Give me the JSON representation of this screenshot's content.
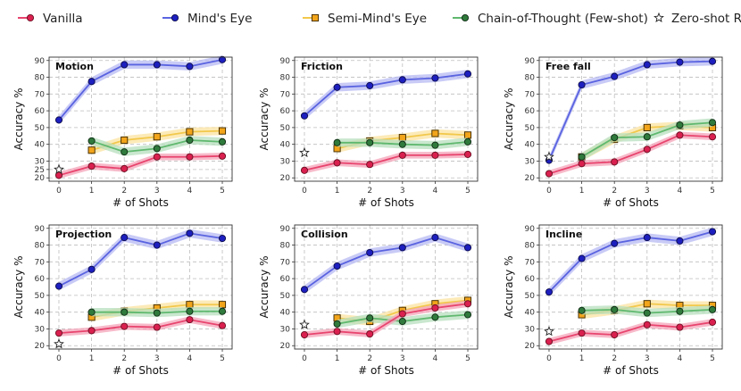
{
  "legend": {
    "entries": [
      {
        "key": "vanilla",
        "label": "Vanilla"
      },
      {
        "key": "minds_eye",
        "label": "Mind's Eye"
      },
      {
        "key": "semi",
        "label": "Semi-Mind's Eye"
      },
      {
        "key": "cot",
        "label": "Chain-of-Thought (Few-shot)"
      },
      {
        "key": "zero",
        "label": "Zero-shot Reasoner (Zero-shot)"
      }
    ]
  },
  "styles": {
    "vanilla": {
      "line": "#e8446e",
      "band": "#f4a3b8",
      "marker": "circle",
      "fill": "#d9204f",
      "stroke": "#6b0f22"
    },
    "minds_eye": {
      "line": "#5a63e0",
      "band": "#b7baf3",
      "marker": "circle",
      "fill": "#1d1fbf",
      "stroke": "#0c0c4a"
    },
    "semi": {
      "line": "#f2c84b",
      "band": "#fbe3a0",
      "marker": "square",
      "fill": "#f2a51b",
      "stroke": "#3a2600"
    },
    "cot": {
      "line": "#5fb86e",
      "band": "#b7dfbe",
      "marker": "circle",
      "fill": "#2f7a3c",
      "stroke": "#0f2a14"
    },
    "zero": {
      "marker": "star",
      "fill": "#ffffff",
      "stroke": "#222222"
    }
  },
  "chart_data": [
    {
      "type": "line",
      "title": "Motion",
      "xlabel": "# of Shots",
      "ylabel": "Accuracy %",
      "x": [
        0,
        1,
        2,
        3,
        4,
        5
      ],
      "xticks": [
        0,
        1,
        2,
        3,
        4,
        5
      ],
      "ylim": [
        18,
        92
      ],
      "yticks": [
        20,
        25,
        30,
        40,
        50,
        60,
        70,
        80,
        90
      ],
      "grid": true,
      "series": [
        {
          "key": "minds_eye",
          "x": [
            0,
            1,
            2,
            3,
            4,
            5
          ],
          "y": [
            54.5,
            77.5,
            87.5,
            87.5,
            86.5,
            90.5
          ],
          "band": 2.5
        },
        {
          "key": "semi",
          "x": [
            1,
            2,
            3,
            4,
            5
          ],
          "y": [
            36.5,
            42.5,
            44.5,
            47.5,
            48.0
          ],
          "band": 2.5
        },
        {
          "key": "cot",
          "x": [
            1,
            2,
            3,
            4,
            5
          ],
          "y": [
            42.0,
            35.5,
            37.5,
            42.5,
            41.5
          ],
          "band": 2.5
        },
        {
          "key": "vanilla",
          "x": [
            0,
            1,
            2,
            3,
            4,
            5
          ],
          "y": [
            21.5,
            27.0,
            25.5,
            32.5,
            32.5,
            33.0
          ],
          "band": 2.0
        },
        {
          "key": "zero",
          "x": [
            0
          ],
          "y": [
            25.0
          ]
        }
      ]
    },
    {
      "type": "line",
      "title": "Friction",
      "xlabel": "# of Shots",
      "ylabel": "Accuracy %",
      "x": [
        0,
        1,
        2,
        3,
        4,
        5
      ],
      "xticks": [
        0,
        1,
        2,
        3,
        4,
        5
      ],
      "ylim": [
        18,
        92
      ],
      "yticks": [
        20,
        30,
        40,
        50,
        60,
        70,
        80,
        90
      ],
      "grid": true,
      "series": [
        {
          "key": "minds_eye",
          "x": [
            0,
            1,
            2,
            3,
            4,
            5
          ],
          "y": [
            57.0,
            74.0,
            75.0,
            78.5,
            79.5,
            82.0
          ],
          "band": 2.5
        },
        {
          "key": "semi",
          "x": [
            1,
            2,
            3,
            4,
            5
          ],
          "y": [
            37.5,
            42.0,
            44.0,
            46.5,
            45.5
          ],
          "band": 2.5
        },
        {
          "key": "cot",
          "x": [
            1,
            2,
            3,
            4,
            5
          ],
          "y": [
            41.0,
            41.0,
            40.0,
            39.5,
            41.5
          ],
          "band": 2.5
        },
        {
          "key": "vanilla",
          "x": [
            0,
            1,
            2,
            3,
            4,
            5
          ],
          "y": [
            24.5,
            29.0,
            28.0,
            33.5,
            33.5,
            34.0
          ],
          "band": 2.0
        },
        {
          "key": "zero",
          "x": [
            0
          ],
          "y": [
            35.0
          ]
        }
      ]
    },
    {
      "type": "line",
      "title": "Free fall",
      "xlabel": "# of Shots",
      "ylabel": "Accuracy %",
      "x": [
        0,
        1,
        2,
        3,
        4,
        5
      ],
      "xticks": [
        0,
        1,
        2,
        3,
        4,
        5
      ],
      "ylim": [
        18,
        92
      ],
      "yticks": [
        20,
        30,
        40,
        50,
        60,
        70,
        80,
        90
      ],
      "grid": true,
      "series": [
        {
          "key": "minds_eye",
          "x": [
            0,
            1,
            2,
            3,
            4,
            5
          ],
          "y": [
            30.5,
            75.5,
            80.5,
            87.5,
            89.0,
            89.5
          ],
          "band": 2.5
        },
        {
          "key": "semi",
          "x": [
            1,
            2,
            3,
            4,
            5
          ],
          "y": [
            32.5,
            43.0,
            50.0,
            51.0,
            50.0
          ],
          "band": 2.5
        },
        {
          "key": "cot",
          "x": [
            1,
            2,
            3,
            4,
            5
          ],
          "y": [
            32.5,
            44.0,
            44.5,
            51.5,
            53.0
          ],
          "band": 2.5
        },
        {
          "key": "vanilla",
          "x": [
            0,
            1,
            2,
            3,
            4,
            5
          ],
          "y": [
            22.5,
            28.5,
            29.5,
            37.0,
            45.5,
            44.5
          ],
          "band": 2.0
        },
        {
          "key": "zero",
          "x": [
            0
          ],
          "y": [
            32.5
          ]
        }
      ]
    },
    {
      "type": "line",
      "title": "Projection",
      "xlabel": "# of Shots",
      "ylabel": "Accuracy %",
      "x": [
        0,
        1,
        2,
        3,
        4,
        5
      ],
      "xticks": [
        0,
        1,
        2,
        3,
        4,
        5
      ],
      "ylim": [
        18,
        92
      ],
      "yticks": [
        20,
        30,
        40,
        50,
        60,
        70,
        80,
        90
      ],
      "grid": true,
      "series": [
        {
          "key": "minds_eye",
          "x": [
            0,
            1,
            2,
            3,
            4,
            5
          ],
          "y": [
            55.5,
            65.5,
            84.5,
            80.0,
            87.0,
            84.0
          ],
          "band": 2.5
        },
        {
          "key": "semi",
          "x": [
            1,
            2,
            3,
            4,
            5
          ],
          "y": [
            37.0,
            40.5,
            42.5,
            44.5,
            44.5
          ],
          "band": 2.5
        },
        {
          "key": "cot",
          "x": [
            1,
            2,
            3,
            4,
            5
          ],
          "y": [
            40.0,
            40.0,
            39.5,
            40.5,
            40.5
          ],
          "band": 2.5
        },
        {
          "key": "vanilla",
          "x": [
            0,
            1,
            2,
            3,
            4,
            5
          ],
          "y": [
            27.5,
            29.0,
            31.5,
            31.0,
            35.5,
            32.0
          ],
          "band": 2.0
        },
        {
          "key": "zero",
          "x": [
            0
          ],
          "y": [
            21.0
          ]
        }
      ]
    },
    {
      "type": "line",
      "title": "Collision",
      "xlabel": "# of Shots",
      "ylabel": "Accuracy %",
      "x": [
        0,
        1,
        2,
        3,
        4,
        5
      ],
      "xticks": [
        0,
        1,
        2,
        3,
        4,
        5
      ],
      "ylim": [
        18,
        92
      ],
      "yticks": [
        20,
        30,
        40,
        50,
        60,
        70,
        80,
        90
      ],
      "grid": true,
      "series": [
        {
          "key": "minds_eye",
          "x": [
            0,
            1,
            2,
            3,
            4,
            5
          ],
          "y": [
            53.5,
            67.5,
            75.5,
            78.5,
            84.5,
            78.5
          ],
          "band": 2.5
        },
        {
          "key": "semi",
          "x": [
            1,
            2,
            3,
            4,
            5
          ],
          "y": [
            36.5,
            34.5,
            41.0,
            45.0,
            47.0
          ],
          "band": 2.5
        },
        {
          "key": "cot",
          "x": [
            1,
            2,
            3,
            4,
            5
          ],
          "y": [
            33.0,
            36.5,
            34.5,
            37.0,
            38.5
          ],
          "band": 2.5
        },
        {
          "key": "vanilla",
          "x": [
            0,
            1,
            2,
            3,
            4,
            5
          ],
          "y": [
            26.5,
            28.5,
            27.0,
            39.0,
            42.5,
            45.0
          ],
          "band": 2.0
        },
        {
          "key": "zero",
          "x": [
            0
          ],
          "y": [
            32.5
          ]
        }
      ]
    },
    {
      "type": "line",
      "title": "Incline",
      "xlabel": "# of Shots",
      "ylabel": "Accuracy %",
      "x": [
        0,
        1,
        2,
        3,
        4,
        5
      ],
      "xticks": [
        0,
        1,
        2,
        3,
        4,
        5
      ],
      "ylim": [
        18,
        92
      ],
      "yticks": [
        20,
        30,
        40,
        50,
        60,
        70,
        80,
        90
      ],
      "grid": true,
      "series": [
        {
          "key": "minds_eye",
          "x": [
            0,
            1,
            2,
            3,
            4,
            5
          ],
          "y": [
            52.0,
            72.0,
            81.0,
            84.5,
            82.5,
            88.0
          ],
          "band": 2.5
        },
        {
          "key": "semi",
          "x": [
            1,
            2,
            3,
            4,
            5
          ],
          "y": [
            38.5,
            41.0,
            45.0,
            44.0,
            44.0
          ],
          "band": 2.5
        },
        {
          "key": "cot",
          "x": [
            1,
            2,
            3,
            4,
            5
          ],
          "y": [
            41.0,
            41.5,
            39.5,
            40.5,
            41.5
          ],
          "band": 2.5
        },
        {
          "key": "vanilla",
          "x": [
            0,
            1,
            2,
            3,
            4,
            5
          ],
          "y": [
            22.5,
            27.5,
            26.5,
            32.5,
            31.0,
            34.0
          ],
          "band": 2.0
        },
        {
          "key": "zero",
          "x": [
            0
          ],
          "y": [
            28.5
          ]
        }
      ]
    }
  ]
}
